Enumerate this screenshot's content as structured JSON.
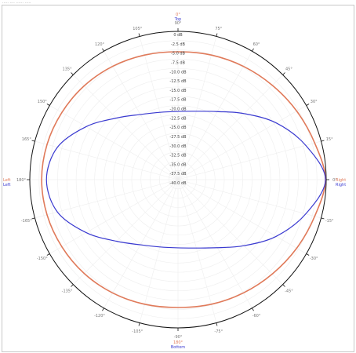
{
  "header": {
    "text": "·····  ···· ······  ·····"
  },
  "colors": {
    "series_a": "#e07a5a",
    "series_b": "#3a3ad0",
    "outer_ring": "#111111",
    "grid": "#eeeeee"
  },
  "markers": {
    "top_a": "0°",
    "top_b": "Top",
    "bottom_a": "180°",
    "bottom_b": "Bottom",
    "right_a": "Right",
    "right_b": "Right",
    "left_a": "Left",
    "left_b": "Left"
  },
  "chart_data": {
    "type": "polar-line",
    "angle_ticks": [
      "0°",
      "15°",
      "30°",
      "45°",
      "60°",
      "75°",
      "90°",
      "105°",
      "120°",
      "135°",
      "150°",
      "165°",
      "180°",
      "-165°",
      "-150°",
      "-135°",
      "-120°",
      "-105°",
      "-90°",
      "-75°",
      "-60°",
      "-45°",
      "-30°",
      "-15°"
    ],
    "ring_labels": [
      "0 dB",
      "-2.5 dB",
      "-5.0 dB",
      "-7.5 dB",
      "-10.0 dB",
      "-12.5 dB",
      "-15.0 dB",
      "-17.5 dB",
      "-20.0 dB",
      "-22.5 dB",
      "-25.0 dB",
      "-27.5 dB",
      "-30.0 dB",
      "-32.5 dB",
      "-35.0 dB",
      "-37.5 dB",
      "-40.0 dB"
    ],
    "r_range_db": [
      -40,
      0
    ],
    "series": [
      {
        "color_key": "series_a",
        "points": [
          [
            0,
            -0.2
          ],
          [
            15,
            -1.8
          ],
          [
            30,
            -3.0
          ],
          [
            45,
            -4.0
          ],
          [
            60,
            -4.7
          ],
          [
            75,
            -5.2
          ],
          [
            90,
            -5.5
          ],
          [
            105,
            -5.2
          ],
          [
            120,
            -4.7
          ],
          [
            135,
            -4.2
          ],
          [
            150,
            -3.8
          ],
          [
            165,
            -3.4
          ],
          [
            180,
            -3.2
          ],
          [
            -165,
            -3.4
          ],
          [
            -150,
            -3.8
          ],
          [
            -135,
            -4.2
          ],
          [
            -120,
            -4.7
          ],
          [
            -105,
            -5.2
          ],
          [
            -90,
            -5.5
          ],
          [
            -75,
            -5.2
          ],
          [
            -60,
            -4.7
          ],
          [
            -45,
            -4.0
          ],
          [
            -30,
            -3.0
          ],
          [
            -15,
            -1.8
          ]
        ]
      },
      {
        "color_key": "series_b",
        "points": [
          [
            0,
            -0.2
          ],
          [
            15,
            -4.3
          ],
          [
            30,
            -9.4
          ],
          [
            45,
            -14.8
          ],
          [
            60,
            -18.8
          ],
          [
            75,
            -20.9
          ],
          [
            90,
            -21.6
          ],
          [
            105,
            -21.2
          ],
          [
            120,
            -19.7
          ],
          [
            135,
            -16.5
          ],
          [
            150,
            -11.4
          ],
          [
            165,
            -6.3
          ],
          [
            180,
            -4.5
          ],
          [
            -165,
            -6.3
          ],
          [
            -150,
            -11.4
          ],
          [
            -135,
            -16.5
          ],
          [
            -120,
            -19.7
          ],
          [
            -105,
            -21.2
          ],
          [
            -90,
            -21.6
          ],
          [
            -75,
            -20.9
          ],
          [
            -60,
            -18.8
          ],
          [
            -45,
            -14.8
          ],
          [
            -30,
            -9.4
          ],
          [
            -15,
            -4.3
          ]
        ]
      }
    ]
  }
}
